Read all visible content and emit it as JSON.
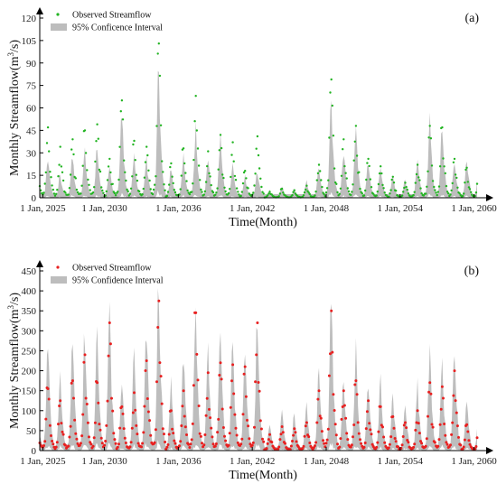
{
  "chart_data": [
    {
      "type": "line",
      "panel_label": "(a)",
      "xlabel": "Time(Month)",
      "ylabel_main": "Monthly Streamflow(m",
      "ylabel_sup": "3",
      "ylabel_tail": "/s)",
      "ylim": [
        0,
        120
      ],
      "yticks": [
        "0",
        "15",
        "30",
        "45",
        "60",
        "75",
        "90",
        "105",
        "120"
      ],
      "x_range": [
        "2024-10",
        "2060-04"
      ],
      "xticks": [
        "1 Jan, 2025",
        "1 Jan, 2030",
        "1 Jan, 2036",
        "1 Jan, 2042",
        "1 Jan, 2048",
        "1 Jan, 2054",
        "1 Jan, 2060"
      ],
      "legend": {
        "position": "top-left",
        "observed": "Observed Streamflow",
        "band": "95% Conficence Interval"
      },
      "colors": {
        "band": "#bdbdbd",
        "points": "#22b422"
      },
      "annual_peaks": [
        {
          "year": 2025,
          "upper": 26,
          "obs": 47
        },
        {
          "year": 2026,
          "upper": 16,
          "obs": 34
        },
        {
          "year": 2027,
          "upper": 28,
          "obs": 39
        },
        {
          "year": 2028,
          "upper": 32,
          "obs": 45
        },
        {
          "year": 2029,
          "upper": 35,
          "obs": 49
        },
        {
          "year": 2030,
          "upper": 20,
          "obs": 26
        },
        {
          "year": 2031,
          "upper": 57,
          "obs": 65
        },
        {
          "year": 2032,
          "upper": 30,
          "obs": 38
        },
        {
          "year": 2033,
          "upper": 26,
          "obs": 34
        },
        {
          "year": 2034,
          "upper": 87,
          "obs": 103
        },
        {
          "year": 2035,
          "upper": 20,
          "obs": 23
        },
        {
          "year": 2036,
          "upper": 28,
          "obs": 33
        },
        {
          "year": 2037,
          "upper": 46,
          "obs": 68
        },
        {
          "year": 2038,
          "upper": 26,
          "obs": 31
        },
        {
          "year": 2039,
          "upper": 40,
          "obs": 42
        },
        {
          "year": 2040,
          "upper": 22,
          "obs": 37
        },
        {
          "year": 2041,
          "upper": 14,
          "obs": 18
        },
        {
          "year": 2042,
          "upper": 18,
          "obs": 41
        },
        {
          "year": 2043,
          "upper": 5,
          "obs": 4
        },
        {
          "year": 2044,
          "upper": 8,
          "obs": 6
        },
        {
          "year": 2045,
          "upper": 6,
          "obs": 5
        },
        {
          "year": 2046,
          "upper": 12,
          "obs": 8
        },
        {
          "year": 2047,
          "upper": 22,
          "obs": 22
        },
        {
          "year": 2048,
          "upper": 66,
          "obs": 79
        },
        {
          "year": 2049,
          "upper": 32,
          "obs": 39
        },
        {
          "year": 2050,
          "upper": 46,
          "obs": 48
        },
        {
          "year": 2051,
          "upper": 25,
          "obs": 26
        },
        {
          "year": 2052,
          "upper": 22,
          "obs": 21
        },
        {
          "year": 2053,
          "upper": 14,
          "obs": 14
        },
        {
          "year": 2054,
          "upper": 12,
          "obs": 10
        },
        {
          "year": 2055,
          "upper": 26,
          "obs": 22
        },
        {
          "year": 2056,
          "upper": 52,
          "obs": 48
        },
        {
          "year": 2057,
          "upper": 49,
          "obs": 47
        },
        {
          "year": 2058,
          "upper": 24,
          "obs": 26
        },
        {
          "year": 2059,
          "upper": 28,
          "obs": 20
        }
      ]
    },
    {
      "type": "line",
      "panel_label": "(b)",
      "xlabel": "Time(Month)",
      "ylabel_main": "Monthly Streamflow(m",
      "ylabel_sup": "3",
      "ylabel_tail": "/s)",
      "ylim": [
        0,
        450
      ],
      "yticks": [
        "0",
        "50",
        "100",
        "150",
        "200",
        "250",
        "300",
        "350",
        "400",
        "450"
      ],
      "x_range": [
        "2024-10",
        "2060-04"
      ],
      "xticks": [
        "1 Jan, 2025",
        "1 Jan, 2030",
        "1 Jan, 2036",
        "1 Jan, 2042",
        "1 Jan, 2048",
        "1 Jan, 2054",
        "1 Jan, 2060"
      ],
      "legend": {
        "position": "top-left",
        "observed": "Observed Streamflow",
        "band": "95% Confidence Interval"
      },
      "colors": {
        "band": "#bdbdbd",
        "points": "#e82020"
      },
      "annual_peaks": [
        {
          "year": 2025,
          "upper": 265,
          "obs": 155
        },
        {
          "year": 2026,
          "upper": 200,
          "obs": 125
        },
        {
          "year": 2027,
          "upper": 275,
          "obs": 175
        },
        {
          "year": 2028,
          "upper": 300,
          "obs": 240
        },
        {
          "year": 2029,
          "upper": 285,
          "obs": 170
        },
        {
          "year": 2030,
          "upper": 360,
          "obs": 320
        },
        {
          "year": 2031,
          "upper": 175,
          "obs": 110
        },
        {
          "year": 2032,
          "upper": 240,
          "obs": 145
        },
        {
          "year": 2033,
          "upper": 305,
          "obs": 225
        },
        {
          "year": 2034,
          "upper": 420,
          "obs": 375
        },
        {
          "year": 2035,
          "upper": 170,
          "obs": 100
        },
        {
          "year": 2036,
          "upper": 245,
          "obs": 150
        },
        {
          "year": 2037,
          "upper": 360,
          "obs": 345
        },
        {
          "year": 2038,
          "upper": 270,
          "obs": 195
        },
        {
          "year": 2039,
          "upper": 300,
          "obs": 220
        },
        {
          "year": 2040,
          "upper": 265,
          "obs": 215
        },
        {
          "year": 2041,
          "upper": 250,
          "obs": 210
        },
        {
          "year": 2042,
          "upper": 325,
          "obs": 320
        },
        {
          "year": 2043,
          "upper": 65,
          "obs": 40
        },
        {
          "year": 2044,
          "upper": 100,
          "obs": 60
        },
        {
          "year": 2045,
          "upper": 90,
          "obs": 55
        },
        {
          "year": 2046,
          "upper": 115,
          "obs": 70
        },
        {
          "year": 2047,
          "upper": 200,
          "obs": 150
        },
        {
          "year": 2048,
          "upper": 400,
          "obs": 350
        },
        {
          "year": 2049,
          "upper": 195,
          "obs": 150
        },
        {
          "year": 2050,
          "upper": 250,
          "obs": 175
        },
        {
          "year": 2051,
          "upper": 180,
          "obs": 125
        },
        {
          "year": 2052,
          "upper": 170,
          "obs": 110
        },
        {
          "year": 2053,
          "upper": 140,
          "obs": 85
        },
        {
          "year": 2054,
          "upper": 120,
          "obs": 70
        },
        {
          "year": 2055,
          "upper": 160,
          "obs": 100
        },
        {
          "year": 2056,
          "upper": 245,
          "obs": 170
        },
        {
          "year": 2057,
          "upper": 210,
          "obs": 160
        },
        {
          "year": 2058,
          "upper": 270,
          "obs": 200
        },
        {
          "year": 2059,
          "upper": 125,
          "obs": 65
        }
      ]
    }
  ]
}
